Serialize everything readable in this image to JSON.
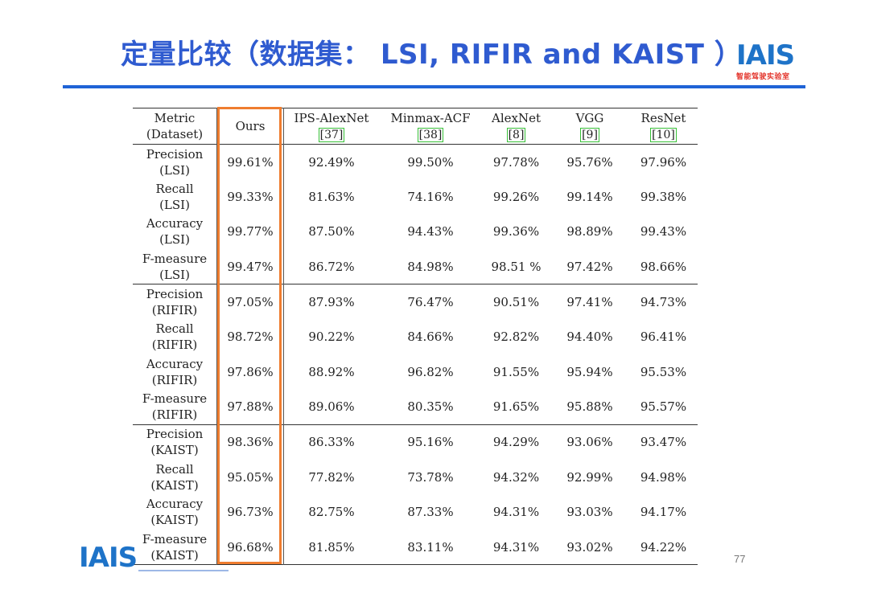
{
  "title": "定量比较（数据集： LSI, RIFIR and KAIST ）",
  "logo": {
    "mark": "IAIS",
    "caption": "智能驾驶实验室"
  },
  "table": {
    "headers": [
      {
        "line1": "Metric",
        "line2": "(Dataset)"
      },
      {
        "line1": "Ours",
        "line2": ""
      },
      {
        "line1": "IPS-AlexNet",
        "line2": "[37]"
      },
      {
        "line1": "Minmax-ACF",
        "line2": "[38]"
      },
      {
        "line1": "AlexNet",
        "line2": "[8]"
      },
      {
        "line1": "VGG",
        "line2": "[9]"
      },
      {
        "line1": "ResNet",
        "line2": "[10]"
      }
    ],
    "rows": [
      {
        "metric": "Precision",
        "dataset": "(LSI)",
        "values": [
          "99.61%",
          "92.49%",
          "99.50%",
          "97.78%",
          "95.76%",
          "97.96%"
        ]
      },
      {
        "metric": "Recall",
        "dataset": "(LSI)",
        "values": [
          "99.33%",
          "81.63%",
          "74.16%",
          "99.26%",
          "99.14%",
          "99.38%"
        ]
      },
      {
        "metric": "Accuracy",
        "dataset": "(LSI)",
        "values": [
          "99.77%",
          "87.50%",
          "94.43%",
          "99.36%",
          "98.89%",
          "99.43%"
        ]
      },
      {
        "metric": "F-measure",
        "dataset": "(LSI)",
        "values": [
          "99.47%",
          "86.72%",
          "84.98%",
          "98.51 %",
          "97.42%",
          "98.66%"
        ]
      },
      {
        "metric": "Precision",
        "dataset": "(RIFIR)",
        "values": [
          "97.05%",
          "87.93%",
          "76.47%",
          "90.51%",
          "97.41%",
          "94.73%"
        ]
      },
      {
        "metric": "Recall",
        "dataset": "(RIFIR)",
        "values": [
          "98.72%",
          "90.22%",
          "84.66%",
          "92.82%",
          "94.40%",
          "96.41%"
        ]
      },
      {
        "metric": "Accuracy",
        "dataset": "(RIFIR)",
        "values": [
          "97.86%",
          "88.92%",
          "96.82%",
          "91.55%",
          "95.94%",
          "95.53%"
        ]
      },
      {
        "metric": "F-measure",
        "dataset": "(RIFIR)",
        "values": [
          "97.88%",
          "89.06%",
          "80.35%",
          "91.65%",
          "95.88%",
          "95.57%"
        ]
      },
      {
        "metric": "Precision",
        "dataset": "(KAIST)",
        "values": [
          "98.36%",
          "86.33%",
          "95.16%",
          "94.29%",
          "93.06%",
          "93.47%"
        ]
      },
      {
        "metric": "Recall",
        "dataset": "(KAIST)",
        "values": [
          "95.05%",
          "77.82%",
          "73.78%",
          "94.32%",
          "92.99%",
          "94.98%"
        ]
      },
      {
        "metric": "Accuracy",
        "dataset": "(KAIST)",
        "values": [
          "96.73%",
          "82.75%",
          "87.33%",
          "94.31%",
          "93.03%",
          "94.17%"
        ]
      },
      {
        "metric": "F-measure",
        "dataset": "(KAIST)",
        "values": [
          "96.68%",
          "81.85%",
          "83.11%",
          "94.31%",
          "93.02%",
          "94.22%"
        ]
      }
    ]
  },
  "page_number": "77",
  "colors": {
    "title": "#2f5bd0",
    "rule": "#1f63d6",
    "highlight_box": "#ef7d2f",
    "ref_box": "#38c038",
    "logo": "#1e73c8"
  }
}
